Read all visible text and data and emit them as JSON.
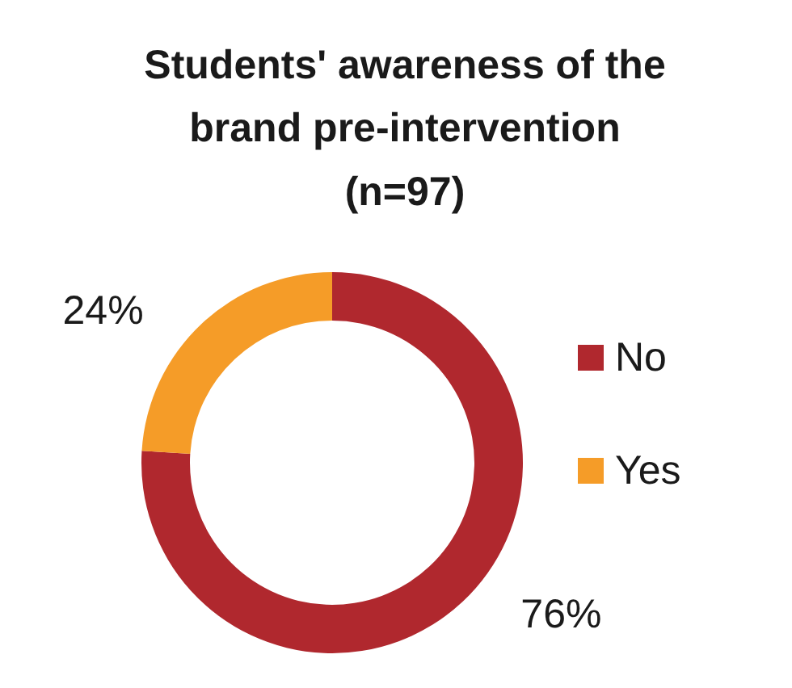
{
  "chart_data": {
    "type": "donut",
    "title": "Students' awareness of the brand pre-intervention (n=97)",
    "categories": [
      "No",
      "Yes"
    ],
    "values": [
      76,
      24
    ],
    "colors": [
      "#b0282e",
      "#f59c28"
    ],
    "value_labels": [
      "76%",
      "24%"
    ],
    "legend": "right"
  }
}
